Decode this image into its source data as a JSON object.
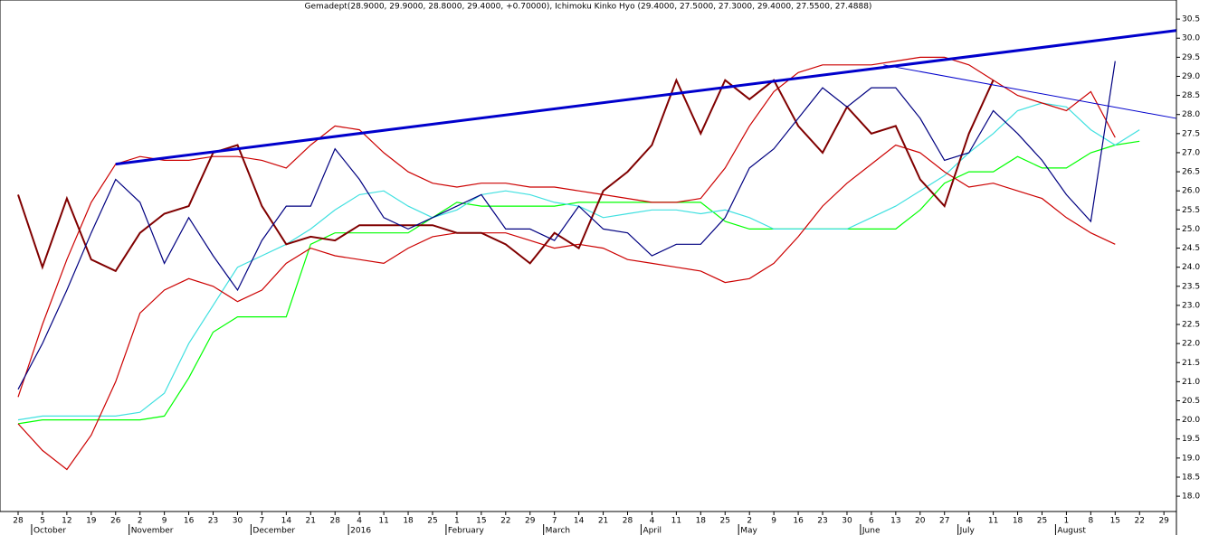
{
  "chart_data": {
    "type": "line",
    "title": "Gemadept(28.9000, 29.9000, 28.8000, 29.4000, +0.70000), Ichimoku Kinko Hyo (29.4000, 27.5000, 27.3000, 29.4000, 27.5500, 27.4888)",
    "categories": [
      "28",
      "5",
      "12",
      "19",
      "26",
      "2",
      "9",
      "16",
      "23",
      "30",
      "7",
      "14",
      "21",
      "28",
      "4",
      "11",
      "18",
      "25",
      "1",
      "15",
      "22",
      "29",
      "7",
      "14",
      "21",
      "28",
      "4",
      "11",
      "18",
      "25",
      "2",
      "9",
      "16",
      "23",
      "30",
      "6",
      "13",
      "20",
      "27",
      "4",
      "11",
      "18",
      "25",
      "1",
      "8",
      "15",
      "22",
      "29"
    ],
    "month_labels": [
      null,
      "October",
      null,
      null,
      null,
      "November",
      null,
      null,
      null,
      null,
      "December",
      null,
      null,
      null,
      "2016",
      null,
      null,
      null,
      "February",
      null,
      null,
      null,
      "March",
      null,
      null,
      null,
      "April",
      null,
      null,
      null,
      "May",
      null,
      null,
      null,
      null,
      "June",
      null,
      null,
      null,
      "July",
      null,
      null,
      null,
      "August",
      null,
      null,
      null,
      null
    ],
    "ylim": [
      17.6,
      31.0
    ],
    "yticks": [
      {
        "value": 18,
        "label": "18.0"
      },
      {
        "value": 18.5,
        "label": "18.5"
      },
      {
        "value": 19,
        "label": "19.0"
      },
      {
        "value": 19.5,
        "label": "19.5"
      },
      {
        "value": 20,
        "label": "20.0"
      },
      {
        "value": 20.5,
        "label": "20.5"
      },
      {
        "value": 21,
        "label": "21.0"
      },
      {
        "value": 21.5,
        "label": "21.5"
      },
      {
        "value": 22,
        "label": "22.0"
      },
      {
        "value": 22.5,
        "label": "22.5"
      },
      {
        "value": 23,
        "label": "23.0"
      },
      {
        "value": 23.5,
        "label": "23.5"
      },
      {
        "value": 24,
        "label": "24.0"
      },
      {
        "value": 24.5,
        "label": "24.5"
      },
      {
        "value": 25,
        "label": "25.0"
      },
      {
        "value": 25.5,
        "label": "25.5"
      },
      {
        "value": 26,
        "label": "26.0"
      },
      {
        "value": 26.5,
        "label": "26.5"
      },
      {
        "value": 27,
        "label": "27.0"
      },
      {
        "value": 27.5,
        "label": "27.5"
      },
      {
        "value": 28,
        "label": "28.0"
      },
      {
        "value": 28.5,
        "label": "28.5"
      },
      {
        "value": 29,
        "label": "29.0"
      },
      {
        "value": 29.5,
        "label": "29.5"
      },
      {
        "value": 30,
        "label": "30.0"
      },
      {
        "value": 30.5,
        "label": "30.5"
      }
    ],
    "series": [
      {
        "color": "#00ff00",
        "values": [
          19.9,
          20.0,
          20.0,
          20.0,
          20.0,
          20.0,
          20.1,
          21.1,
          22.3,
          22.7,
          22.7,
          22.7,
          24.6,
          24.9,
          24.9,
          24.9,
          24.9,
          25.3,
          25.7,
          25.6,
          25.6,
          25.6,
          25.6,
          25.7,
          25.7,
          25.7,
          25.7,
          25.7,
          25.7,
          25.2,
          25.0,
          25.0,
          25.0,
          25.0,
          25.0,
          25.0,
          25.0,
          25.5,
          26.2,
          26.5,
          26.5,
          26.9,
          26.6,
          26.6,
          27.0,
          27.2,
          27.3,
          null
        ]
      },
      {
        "color": "#40e0e0",
        "values": [
          20.0,
          20.1,
          20.1,
          20.1,
          20.1,
          20.2,
          20.7,
          22.0,
          23.0,
          24.0,
          24.3,
          24.6,
          25.0,
          25.5,
          25.9,
          26.0,
          25.6,
          25.3,
          25.5,
          25.9,
          26.0,
          25.9,
          25.7,
          25.6,
          25.3,
          25.4,
          25.5,
          25.5,
          25.4,
          25.5,
          25.3,
          25.0,
          25.0,
          25.0,
          25.0,
          25.3,
          25.6,
          26.0,
          26.4,
          27.0,
          27.5,
          28.1,
          28.3,
          28.2,
          27.6,
          27.2,
          27.6,
          null
        ]
      },
      {
        "color": "#cc0000",
        "values": [
          20.6,
          22.5,
          24.2,
          25.7,
          26.7,
          26.9,
          26.8,
          26.8,
          26.9,
          26.9,
          26.8,
          26.6,
          27.2,
          27.7,
          27.6,
          27.0,
          26.5,
          26.2,
          26.1,
          26.2,
          26.2,
          26.1,
          26.1,
          26.0,
          25.9,
          25.8,
          25.7,
          25.7,
          25.8,
          26.6,
          27.7,
          28.6,
          29.1,
          29.3,
          29.3,
          29.3,
          29.4,
          29.5,
          29.5,
          29.3,
          28.9,
          28.5,
          28.3,
          28.1,
          28.6,
          27.4,
          null,
          null
        ]
      },
      {
        "color": "#cc0000",
        "values": [
          19.9,
          19.2,
          18.7,
          19.6,
          21.0,
          22.8,
          23.4,
          23.7,
          23.5,
          23.1,
          23.4,
          24.1,
          24.5,
          24.3,
          24.2,
          24.1,
          24.5,
          24.8,
          24.9,
          24.9,
          24.9,
          24.7,
          24.5,
          24.6,
          24.5,
          24.2,
          24.1,
          24.0,
          23.9,
          23.6,
          23.7,
          24.1,
          24.8,
          25.6,
          26.2,
          26.7,
          27.2,
          27.0,
          26.5,
          26.1,
          26.2,
          26.0,
          25.8,
          25.3,
          24.9,
          24.6,
          null,
          null
        ]
      },
      {
        "color": "#800000",
        "values": [
          25.9,
          24.0,
          25.8,
          24.2,
          23.9,
          24.9,
          25.4,
          25.6,
          27.0,
          27.2,
          25.6,
          24.6,
          24.8,
          24.7,
          25.1,
          25.1,
          25.1,
          25.1,
          24.9,
          24.9,
          24.6,
          24.1,
          24.9,
          24.5,
          26.0,
          26.5,
          27.2,
          28.9,
          27.5,
          28.9,
          28.4,
          28.9,
          27.7,
          27.0,
          28.2,
          27.5,
          27.7,
          26.3,
          25.6,
          27.5,
          28.9,
          null,
          null,
          null,
          null,
          null,
          null,
          null
        ]
      },
      {
        "color": "#000080",
        "values": [
          20.8,
          22.0,
          23.4,
          24.9,
          26.3,
          25.7,
          24.1,
          25.3,
          24.3,
          23.4,
          24.7,
          25.6,
          25.6,
          27.1,
          26.3,
          25.3,
          25.0,
          25.3,
          25.6,
          25.9,
          25.0,
          25.0,
          24.7,
          25.6,
          25.0,
          24.9,
          24.3,
          24.6,
          24.6,
          25.3,
          26.6,
          27.1,
          27.9,
          28.7,
          28.2,
          28.7,
          28.7,
          27.9,
          26.8,
          27.0,
          28.1,
          27.5,
          26.8,
          25.9,
          25.2,
          29.4,
          null,
          null
        ]
      }
    ],
    "trendlines": [
      {
        "color": "#0000cc",
        "x": [
          4,
          47.5
        ],
        "values": [
          26.7,
          30.2
        ]
      },
      {
        "color": "#0000cc",
        "x": [
          35.5,
          47.5
        ],
        "values": [
          29.3,
          27.9
        ]
      }
    ]
  }
}
